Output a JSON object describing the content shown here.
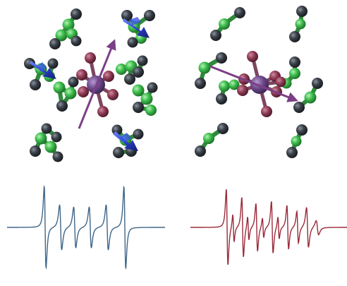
{
  "colors": {
    "background": "#ffffff",
    "carbon": "#3b4149",
    "green_atom": "#3fc04e",
    "green_bond": "#2e8a3a",
    "metal_center": "#7a4f8c",
    "ligand": "#8c3a52",
    "magnetic_axis_arrow": "#7b3f86",
    "anisotropy_arrow": "#2a3ec8",
    "spectrum_left": "#3e6688",
    "spectrum_right": "#9a2a3a"
  },
  "icons": {
    "metal": "metal-center-icon",
    "arrow": "magnetic-axis-arrow-icon",
    "cluster": "ligand-cluster-icon"
  },
  "panels": [
    {
      "name": "left",
      "clusters_with_blue_arrows": 3
    },
    {
      "name": "right",
      "clusters_with_blue_arrows": 0
    }
  ]
}
